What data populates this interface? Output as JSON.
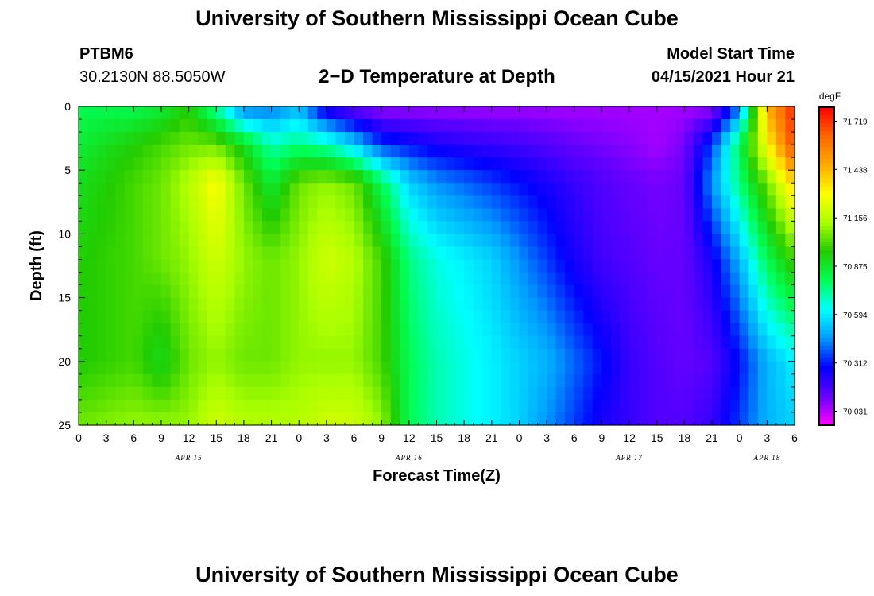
{
  "header": {
    "title": "University of Southern Mississippi Ocean Cube",
    "station_id": "PTBM6",
    "station_coords": "30.2130N  88.5050W",
    "plot_title": "2−D Temperature at Depth",
    "model_start_label": "Model Start Time",
    "model_start_value": "04/15/2021 Hour 21"
  },
  "footer": {
    "title": "University of Southern Mississippi Ocean Cube"
  },
  "chart_data": {
    "type": "heatmap",
    "title": "2−D Temperature at Depth",
    "xlabel": "Forecast Time(Z)",
    "ylabel": "Depth (ft)",
    "x_range_hours": [
      0,
      78
    ],
    "y_range_ft": [
      0,
      25
    ],
    "y_inverted": true,
    "x_tick_labels": [
      "0",
      "3",
      "6",
      "9",
      "12",
      "15",
      "18",
      "21",
      "0",
      "3",
      "6",
      "9",
      "12",
      "15",
      "18",
      "21",
      "0",
      "3",
      "6",
      "9",
      "12",
      "15",
      "18",
      "21",
      "0",
      "3",
      "6"
    ],
    "date_labels": [
      {
        "label": "APR 15",
        "hour": 12
      },
      {
        "label": "APR 16",
        "hour": 36
      },
      {
        "label": "APR 17",
        "hour": 60
      },
      {
        "label": "APR 18",
        "hour": 75
      }
    ],
    "y_tick_labels": [
      "0",
      "5",
      "10",
      "15",
      "20",
      "25"
    ],
    "y_ticks": [
      0,
      5,
      10,
      15,
      20,
      25
    ],
    "colorbar": {
      "unit": "degF",
      "ticks": [
        70.031,
        70.312,
        70.594,
        70.875,
        71.156,
        71.438,
        71.719
      ],
      "tick_labels": [
        "70.031",
        "70.312",
        "70.594",
        "70.875",
        "71.156",
        "71.438",
        "71.719"
      ],
      "range": [
        69.95,
        71.8
      ],
      "colors": [
        "#ff00ff",
        "#6600ff",
        "#0000ff",
        "#0099ff",
        "#00ffff",
        "#00ff55",
        "#22cc00",
        "#aaff00",
        "#ffff00",
        "#ffaa00",
        "#ff6600",
        "#ff0000"
      ]
    },
    "grid": false,
    "legend": "colorbar-right",
    "field_description_points": {
      "columns_hours": [
        0,
        6,
        9,
        12,
        15,
        18,
        21,
        24,
        27,
        30,
        33,
        36,
        39,
        42,
        45,
        48,
        51,
        54,
        57,
        60,
        63,
        66,
        69,
        72,
        75,
        78
      ],
      "rows_depth_ft": [
        0,
        3,
        6,
        12,
        20,
        25
      ],
      "values": [
        [
          70.8,
          70.8,
          70.85,
          70.95,
          70.7,
          70.4,
          70.4,
          70.5,
          70.2,
          70.1,
          70.05,
          70.05,
          70.05,
          70.05,
          70.05,
          70.05,
          70.05,
          70.05,
          70.05,
          70.05,
          70.05,
          70.05,
          70.05,
          70.4,
          71.45,
          71.75
        ],
        [
          70.85,
          70.95,
          71.0,
          71.05,
          71.05,
          70.9,
          70.7,
          70.75,
          70.7,
          70.55,
          70.35,
          70.3,
          70.25,
          70.22,
          70.2,
          70.18,
          70.15,
          70.12,
          70.1,
          70.08,
          70.05,
          70.1,
          70.35,
          70.8,
          71.3,
          71.7
        ],
        [
          70.9,
          71.0,
          71.05,
          71.15,
          71.3,
          71.05,
          70.85,
          71.05,
          71.1,
          71.05,
          70.8,
          70.55,
          70.45,
          70.4,
          70.35,
          70.3,
          70.25,
          70.2,
          70.15,
          70.12,
          70.1,
          70.12,
          70.45,
          70.75,
          71.05,
          71.4
        ],
        [
          70.95,
          71.0,
          71.05,
          71.1,
          71.2,
          71.1,
          71.05,
          71.1,
          71.2,
          71.15,
          71.0,
          70.75,
          70.65,
          70.6,
          70.55,
          70.45,
          70.35,
          70.25,
          70.18,
          70.15,
          70.12,
          70.12,
          70.25,
          70.5,
          70.8,
          71.0
        ],
        [
          70.95,
          71.0,
          70.9,
          71.05,
          71.1,
          71.05,
          71.05,
          71.1,
          71.1,
          71.1,
          71.0,
          70.8,
          70.7,
          70.65,
          70.6,
          70.55,
          70.5,
          70.4,
          70.3,
          70.2,
          70.15,
          70.12,
          70.15,
          70.3,
          70.5,
          70.6
        ],
        [
          71.05,
          71.1,
          71.1,
          71.1,
          71.2,
          71.15,
          71.15,
          71.15,
          71.2,
          71.2,
          71.1,
          70.8,
          70.7,
          70.65,
          70.6,
          70.55,
          70.45,
          70.35,
          70.25,
          70.2,
          70.15,
          70.15,
          70.2,
          70.35,
          70.5,
          70.55
        ]
      ]
    }
  }
}
